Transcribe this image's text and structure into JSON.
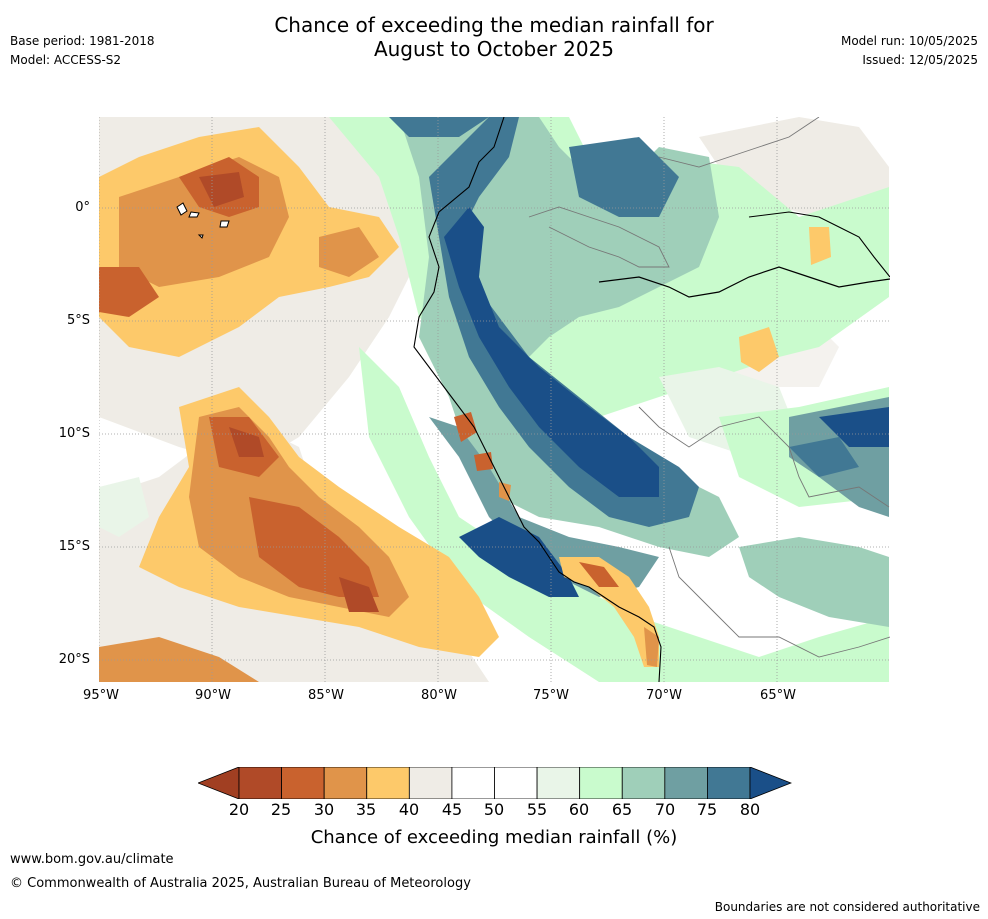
{
  "title": {
    "line1": "Chance of exceeding the median rainfall for",
    "line2": "August to October 2025"
  },
  "meta_left": {
    "base_period": "Base period: 1981-2018",
    "model": "Model: ACCESS-S2"
  },
  "meta_right": {
    "model_run": "Model run: 10/05/2025",
    "issued": "Issued: 12/05/2025"
  },
  "map": {
    "lat_labels": [
      "0°",
      "5°S",
      "10°S",
      "15°S",
      "20°S"
    ],
    "lon_labels": [
      "95°W",
      "90°W",
      "85°W",
      "80°W",
      "75°W",
      "70°W",
      "65°W"
    ]
  },
  "legend": {
    "ticks": [
      "20",
      "25",
      "30",
      "35",
      "40",
      "45",
      "50",
      "55",
      "60",
      "65",
      "70",
      "75",
      "80"
    ],
    "label": "Chance of exceeding median rainfall (%)",
    "colors": [
      "#b04a28",
      "#c9622e",
      "#e0944a",
      "#fdc96a",
      "#efece6",
      "#ffffff",
      "#ffffff",
      "#e9f5e8",
      "#c9fbcd",
      "#9fcfb9",
      "#6f9fa2",
      "#417894"
    ],
    "below_color": "#a13f22",
    "above_color": "#1a4f88"
  },
  "footer": {
    "url": "www.bom.gov.au/climate",
    "copyright": "© Commonwealth of Australia 2025, Australian Bureau of Meteorology",
    "disclaimer": "Boundaries are not considered authoritative"
  }
}
